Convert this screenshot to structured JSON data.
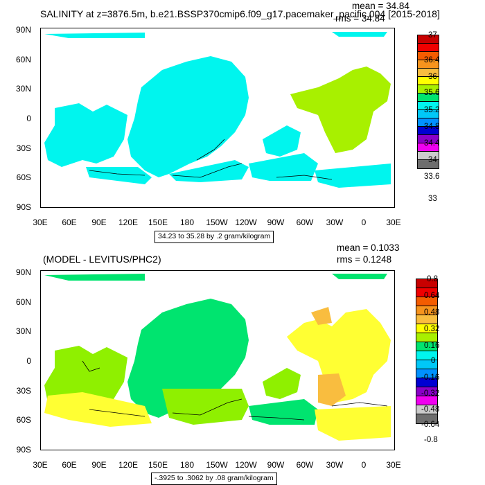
{
  "panels": [
    {
      "title": "SALINITY at z=3876.5m, b.e21.BSSP370cmip6.f09_g17.pacemaker_pacific.004 [2015-2018]",
      "mean": "mean = 34.84",
      "rms": "rms = 34.84",
      "info": "34.23 to 35.28 by .2 gram/kilogram",
      "fill_color": "#00f5ee",
      "colorbar_labels": [
        "37",
        "36.4",
        "36",
        "35.6",
        "35.2",
        "34.8",
        "34.4",
        "34",
        "33.6",
        "33"
      ]
    },
    {
      "title": "(MODEL - LEVITUS/PHC2)",
      "mean": "mean = 0.1033",
      "rms": "rms = 0.1248",
      "info": "-.3925 to .3062 by .08 gram/kilogram",
      "fill_color": "#00e46f",
      "colorbar_labels": [
        "0.8",
        "0.64",
        "0.48",
        "0.32",
        "0.16",
        "0",
        "-0.16",
        "-0.32",
        "-0.48",
        "-0.64",
        "-0.8"
      ]
    }
  ],
  "axes": {
    "lat_labels": [
      "90N",
      "60N",
      "30N",
      "0",
      "30S",
      "60S",
      "90S"
    ],
    "lon_labels": [
      "30E",
      "60E",
      "90E",
      "120E",
      "150E",
      "180",
      "150W",
      "120W",
      "90W",
      "60W",
      "30W",
      "0",
      "30E"
    ]
  },
  "colors": {
    "colorbar": [
      "#c80000",
      "#f00000",
      "#f45c00",
      "#f7941d",
      "#f9bd3f",
      "#ffff00",
      "#a8f000",
      "#00e46f",
      "#00f5ee",
      "#00c8f8",
      "#0091ff",
      "#0000d2",
      "#8a00c8",
      "#f000f0",
      "#cccccc",
      "#6e6e6e"
    ],
    "green_positive": "#8ff000",
    "yellow_high": "#ffff33",
    "orange": "#f9bd3f"
  }
}
